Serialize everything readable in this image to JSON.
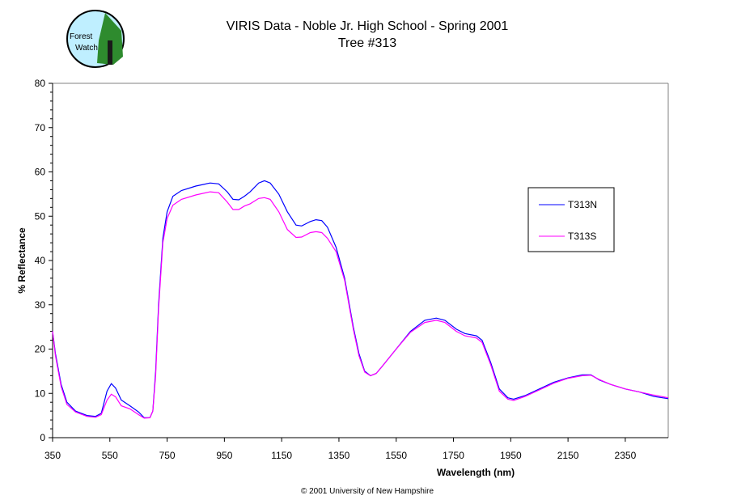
{
  "logo": {
    "text": "Forest Watch"
  },
  "copyright": "© 2001 University of New Hampshire",
  "chart_data": {
    "type": "line",
    "title": "VIRIS Data - Noble Jr. High School - Spring 2001",
    "subtitle": "Tree #313",
    "xlabel": "Wavelength (nm)",
    "ylabel": "% Reflectance",
    "xlim": [
      350,
      2500
    ],
    "ylim": [
      0,
      80
    ],
    "xticks": [
      350,
      550,
      750,
      950,
      1150,
      1350,
      1550,
      1750,
      1950,
      2150,
      2350
    ],
    "yticks": [
      0,
      10,
      20,
      30,
      40,
      50,
      60,
      70,
      80
    ],
    "legend_position": "right",
    "grid": false,
    "series": [
      {
        "name": "T313N",
        "color": "#0000ff",
        "points": [
          [
            350,
            24
          ],
          [
            360,
            19
          ],
          [
            380,
            12
          ],
          [
            400,
            8
          ],
          [
            430,
            6
          ],
          [
            470,
            5
          ],
          [
            500,
            4.8
          ],
          [
            520,
            5.5
          ],
          [
            540,
            10.5
          ],
          [
            555,
            12.2
          ],
          [
            570,
            11.2
          ],
          [
            590,
            8.5
          ],
          [
            620,
            7.2
          ],
          [
            650,
            5.8
          ],
          [
            670,
            4.5
          ],
          [
            690,
            4.5
          ],
          [
            700,
            6
          ],
          [
            710,
            15
          ],
          [
            720,
            30
          ],
          [
            735,
            45
          ],
          [
            750,
            51
          ],
          [
            770,
            54.5
          ],
          [
            800,
            55.8
          ],
          [
            850,
            56.8
          ],
          [
            900,
            57.5
          ],
          [
            930,
            57.3
          ],
          [
            960,
            55.5
          ],
          [
            980,
            53.8
          ],
          [
            1000,
            53.7
          ],
          [
            1020,
            54.5
          ],
          [
            1040,
            55.5
          ],
          [
            1070,
            57.5
          ],
          [
            1090,
            58
          ],
          [
            1110,
            57.5
          ],
          [
            1140,
            55
          ],
          [
            1170,
            51
          ],
          [
            1200,
            48
          ],
          [
            1220,
            47.8
          ],
          [
            1250,
            48.8
          ],
          [
            1270,
            49.2
          ],
          [
            1290,
            49
          ],
          [
            1310,
            47.5
          ],
          [
            1340,
            43
          ],
          [
            1370,
            36
          ],
          [
            1400,
            25
          ],
          [
            1420,
            19
          ],
          [
            1440,
            15
          ],
          [
            1460,
            14
          ],
          [
            1480,
            14.5
          ],
          [
            1500,
            16
          ],
          [
            1550,
            20
          ],
          [
            1600,
            24
          ],
          [
            1650,
            26.5
          ],
          [
            1690,
            27
          ],
          [
            1720,
            26.5
          ],
          [
            1760,
            24.5
          ],
          [
            1790,
            23.5
          ],
          [
            1830,
            23
          ],
          [
            1850,
            22
          ],
          [
            1880,
            17
          ],
          [
            1910,
            11
          ],
          [
            1940,
            9
          ],
          [
            1960,
            8.7
          ],
          [
            2000,
            9.5
          ],
          [
            2050,
            11
          ],
          [
            2100,
            12.5
          ],
          [
            2150,
            13.5
          ],
          [
            2200,
            14.2
          ],
          [
            2230,
            14.2
          ],
          [
            2260,
            13
          ],
          [
            2300,
            12
          ],
          [
            2350,
            11
          ],
          [
            2400,
            10.3
          ],
          [
            2450,
            9.3
          ],
          [
            2500,
            8.8
          ]
        ]
      },
      {
        "name": "T313S",
        "color": "#ff00ff",
        "points": [
          [
            350,
            24
          ],
          [
            360,
            18.5
          ],
          [
            380,
            11.5
          ],
          [
            400,
            7.5
          ],
          [
            430,
            5.8
          ],
          [
            470,
            4.8
          ],
          [
            500,
            4.6
          ],
          [
            520,
            5.2
          ],
          [
            540,
            8.5
          ],
          [
            555,
            9.8
          ],
          [
            570,
            9.2
          ],
          [
            590,
            7.2
          ],
          [
            620,
            6.5
          ],
          [
            650,
            5.2
          ],
          [
            670,
            4.4
          ],
          [
            690,
            4.5
          ],
          [
            700,
            6
          ],
          [
            710,
            14
          ],
          [
            720,
            29
          ],
          [
            735,
            44
          ],
          [
            750,
            49.5
          ],
          [
            770,
            52.5
          ],
          [
            800,
            53.8
          ],
          [
            850,
            54.8
          ],
          [
            900,
            55.5
          ],
          [
            930,
            55.3
          ],
          [
            960,
            53.2
          ],
          [
            980,
            51.5
          ],
          [
            1000,
            51.5
          ],
          [
            1020,
            52.3
          ],
          [
            1040,
            52.8
          ],
          [
            1070,
            54
          ],
          [
            1090,
            54.2
          ],
          [
            1110,
            53.8
          ],
          [
            1140,
            51
          ],
          [
            1170,
            47
          ],
          [
            1200,
            45.2
          ],
          [
            1220,
            45.3
          ],
          [
            1250,
            46.3
          ],
          [
            1270,
            46.5
          ],
          [
            1290,
            46.3
          ],
          [
            1310,
            45
          ],
          [
            1340,
            42
          ],
          [
            1370,
            35.5
          ],
          [
            1400,
            24.5
          ],
          [
            1420,
            18.5
          ],
          [
            1440,
            14.8
          ],
          [
            1460,
            14
          ],
          [
            1480,
            14.5
          ],
          [
            1500,
            16
          ],
          [
            1550,
            20
          ],
          [
            1600,
            23.8
          ],
          [
            1650,
            26
          ],
          [
            1690,
            26.5
          ],
          [
            1720,
            26
          ],
          [
            1760,
            24
          ],
          [
            1790,
            23
          ],
          [
            1830,
            22.5
          ],
          [
            1850,
            21.5
          ],
          [
            1880,
            16.5
          ],
          [
            1910,
            10.5
          ],
          [
            1940,
            8.7
          ],
          [
            1960,
            8.4
          ],
          [
            2000,
            9.3
          ],
          [
            2050,
            10.8
          ],
          [
            2100,
            12.3
          ],
          [
            2150,
            13.4
          ],
          [
            2200,
            14
          ],
          [
            2230,
            14.1
          ],
          [
            2260,
            13.1
          ],
          [
            2300,
            12
          ],
          [
            2350,
            11
          ],
          [
            2400,
            10.3
          ],
          [
            2450,
            9.6
          ],
          [
            2500,
            9
          ]
        ]
      }
    ]
  }
}
